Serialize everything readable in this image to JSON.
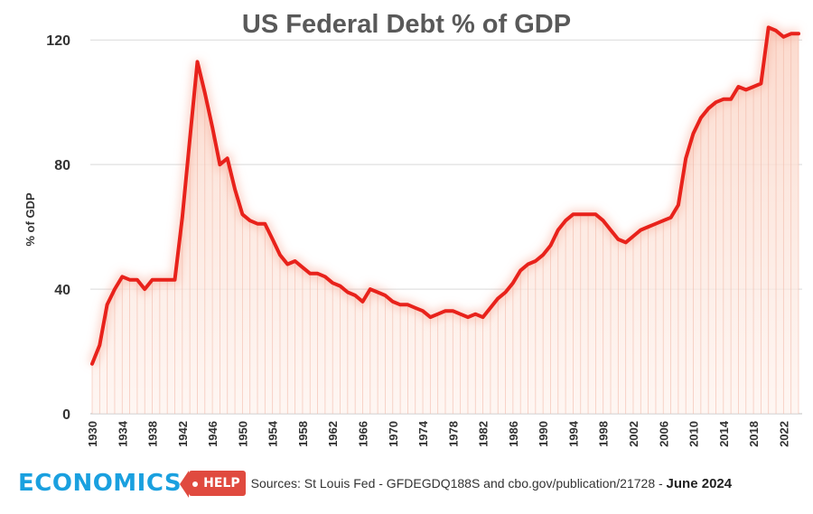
{
  "chart_data": {
    "type": "line",
    "title": "US Federal Debt % of GDP",
    "xlabel": "",
    "ylabel": "% of GDP",
    "xlim": [
      1930,
      2024
    ],
    "ylim": [
      0,
      125
    ],
    "y_ticks": [
      0,
      40,
      80,
      120
    ],
    "x_ticks": [
      1930,
      1934,
      1938,
      1942,
      1946,
      1950,
      1954,
      1958,
      1962,
      1966,
      1970,
      1974,
      1978,
      1982,
      1986,
      1990,
      1994,
      1998,
      2002,
      2006,
      2010,
      2014,
      2018,
      2022
    ],
    "grid": true,
    "legend": "none",
    "series": [
      {
        "color": "#e8221b",
        "x": [
          1930,
          1931,
          1932,
          1933,
          1934,
          1935,
          1936,
          1937,
          1938,
          1939,
          1940,
          1941,
          1942,
          1943,
          1944,
          1945,
          1946,
          1947,
          1948,
          1949,
          1950,
          1951,
          1952,
          1953,
          1954,
          1955,
          1956,
          1957,
          1958,
          1959,
          1960,
          1961,
          1962,
          1963,
          1964,
          1965,
          1966,
          1967,
          1968,
          1969,
          1970,
          1971,
          1972,
          1973,
          1974,
          1975,
          1976,
          1977,
          1978,
          1979,
          1980,
          1981,
          1982,
          1983,
          1984,
          1985,
          1986,
          1987,
          1988,
          1989,
          1990,
          1991,
          1992,
          1993,
          1994,
          1995,
          1996,
          1997,
          1998,
          1999,
          2000,
          2001,
          2002,
          2003,
          2004,
          2005,
          2006,
          2007,
          2008,
          2009,
          2010,
          2011,
          2012,
          2013,
          2014,
          2015,
          2016,
          2017,
          2018,
          2019,
          2020,
          2021,
          2022,
          2023,
          2024
        ],
        "y": [
          16,
          22,
          35,
          40,
          44,
          43,
          43,
          40,
          43,
          43,
          43,
          43,
          63,
          88,
          113,
          103,
          92,
          80,
          82,
          72,
          64,
          62,
          61,
          61,
          56,
          51,
          48,
          49,
          47,
          45,
          45,
          44,
          42,
          41,
          39,
          38,
          36,
          40,
          39,
          38,
          36,
          35,
          35,
          34,
          33,
          31,
          32,
          33,
          33,
          32,
          31,
          32,
          31,
          34,
          37,
          39,
          42,
          46,
          48,
          49,
          51,
          54,
          59,
          62,
          64,
          64,
          64,
          64,
          62,
          59,
          56,
          55,
          57,
          59,
          60,
          61,
          62,
          63,
          67,
          82,
          90,
          95,
          98,
          100,
          101,
          101,
          105,
          104,
          105,
          106,
          124,
          123,
          121,
          122,
          122
        ]
      }
    ],
    "footer": {
      "logo_main": "ECONOMICS",
      "logo_tag": "HELP",
      "source": "Sources: St Louis Fed - GFDEGDQ188S and cbo.gov/publication/21728 - ",
      "date": "June 2024"
    }
  }
}
